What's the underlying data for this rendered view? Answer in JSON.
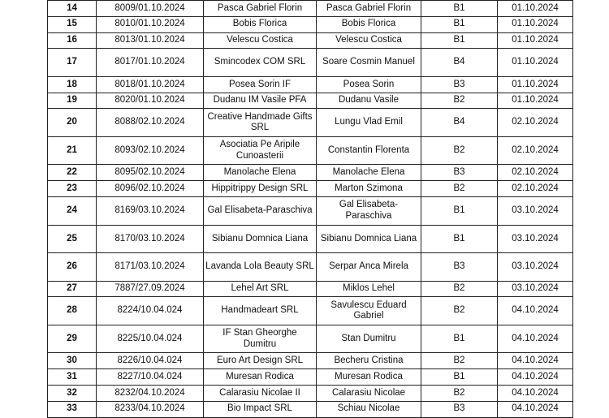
{
  "rows": [
    {
      "nr": "14",
      "reg": "8009/01.10.2024",
      "applicant": "Pasca Gabriel Florin",
      "representative": "Pasca Gabriel Florin",
      "code": "B1",
      "date": "01.10.2024"
    },
    {
      "nr": "15",
      "reg": "8010/01.10.2024",
      "applicant": "Bobis Florica",
      "representative": "Bobis Florica",
      "code": "B1",
      "date": "01.10.2024"
    },
    {
      "nr": "16",
      "reg": "8013/01.10.2024",
      "applicant": "Velescu Costica",
      "representative": "Velescu Costica",
      "code": "B1",
      "date": "01.10.2024"
    },
    {
      "nr": "17",
      "reg": "8017/01.10.2024",
      "applicant": "Smincodex COM SRL",
      "representative": "Soare Cosmin Manuel",
      "code": "B4",
      "date": "01.10.2024"
    },
    {
      "nr": "18",
      "reg": "8018/01.10.2024",
      "applicant": "Posea Sorin IF",
      "representative": "Posea Sorin",
      "code": "B3",
      "date": "01.10.2024"
    },
    {
      "nr": "19",
      "reg": "8020/01.10.2024",
      "applicant": "Dudanu IM Vasile PFA",
      "representative": "Dudanu Vasile",
      "code": "B2",
      "date": "01.10.2024"
    },
    {
      "nr": "20",
      "reg": "8088/02.10.2024",
      "applicant": "Creative Handmade Gifts SRL",
      "representative": "Lungu Vlad Emil",
      "code": "B4",
      "date": "02.10.2024"
    },
    {
      "nr": "21",
      "reg": "8093/02.10.2024",
      "applicant": "Asociatia Pe Aripile Cunoasterii",
      "representative": "Constantin Florenta",
      "code": "B2",
      "date": "02.10.2024"
    },
    {
      "nr": "22",
      "reg": "8095/02.10.2024",
      "applicant": "Manolache Elena",
      "representative": "Manolache Elena",
      "code": "B3",
      "date": "02.10.2024"
    },
    {
      "nr": "23",
      "reg": "8096/02.10.2024",
      "applicant": "Hippitrippy Design SRL",
      "representative": "Marton Szimona",
      "code": "B2",
      "date": "02.10.2024"
    },
    {
      "nr": "24",
      "reg": "8169/03.10.2024",
      "applicant": "Gal Elisabeta-Paraschiva",
      "representative": "Gal Elisabeta-Paraschiva",
      "code": "B1",
      "date": "03.10.2024"
    },
    {
      "nr": "25",
      "reg": "8170/03.10.2024",
      "applicant": "Sibianu Domnica Liana",
      "representative": "Sibianu Domnica Liana",
      "code": "B1",
      "date": "03.10.2024"
    },
    {
      "nr": "26",
      "reg": "8171/03.10.2024",
      "applicant": "Lavanda Lola Beauty SRL",
      "representative": "Serpar Anca Mirela",
      "code": "B3",
      "date": "03.10.2024"
    },
    {
      "nr": "27",
      "reg": "7887/27.09.2024",
      "applicant": "Lehel Art SRL",
      "representative": "Miklos Lehel",
      "code": "B2",
      "date": "03.10.2024"
    },
    {
      "nr": "28",
      "reg": "8224/10.04.024",
      "applicant": "Handmadeart SRL",
      "representative": "Savulescu Eduard Gabriel",
      "code": "B2",
      "date": "04.10.2024"
    },
    {
      "nr": "29",
      "reg": "8225/10.04.024",
      "applicant": "IF Stan Gheorghe Dumitru",
      "representative": "Stan Dumitru",
      "code": "B1",
      "date": "04.10.2024"
    },
    {
      "nr": "30",
      "reg": "8226/10.04.024",
      "applicant": "Euro Art Design SRL",
      "representative": "Becheru Cristina",
      "code": "B2",
      "date": "04.10.2024"
    },
    {
      "nr": "31",
      "reg": "8227/10.04.024",
      "applicant": "Muresan Rodica",
      "representative": "Muresan Rodica",
      "code": "B1",
      "date": "04.10.2024"
    },
    {
      "nr": "32",
      "reg": "8232/04.10.2024",
      "applicant": "Calarasiu Nicolae II",
      "representative": "Calarasiu Nicolae",
      "code": "B2",
      "date": "04.10.2024"
    },
    {
      "nr": "33",
      "reg": "8233/04.10.2024",
      "applicant": "Bio Impact SRL",
      "representative": "Schiau Nicolae",
      "code": "B3",
      "date": "04.10.2024"
    }
  ]
}
